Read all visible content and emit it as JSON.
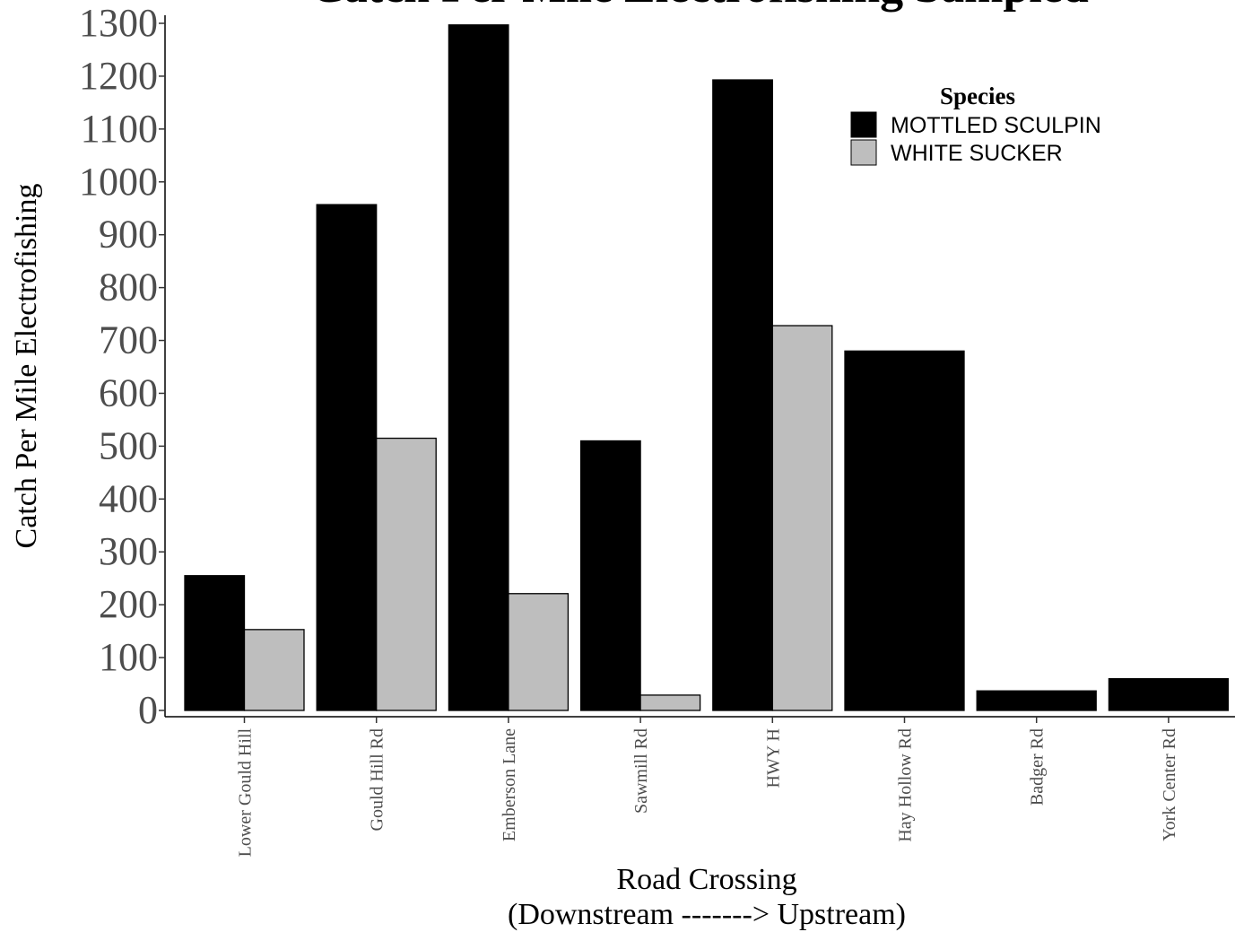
{
  "chart_data": {
    "type": "bar",
    "title": "Catch Per Mile Electrofishing Sampled",
    "xlabel": "Road Crossing",
    "xlabel_line2": "(Downstream -------> Upstream)",
    "ylabel": "Catch Per Mile Electrofishing",
    "ylim": [
      0,
      1300
    ],
    "yticks": [
      0,
      100,
      200,
      300,
      400,
      500,
      600,
      700,
      800,
      900,
      1000,
      1100,
      1200,
      1300
    ],
    "categories": [
      "Lower Gould Hill",
      "Gould Hill Rd",
      "Emberson Lane",
      "Sawmill Rd",
      "HWY H",
      "Hay Hollow Rd",
      "Badger Rd",
      "York Center Rd"
    ],
    "series": [
      {
        "name": "MOTTLED SCULPIN",
        "color": "#000000",
        "values": [
          255,
          957,
          1297,
          510,
          1193,
          680,
          37,
          60
        ]
      },
      {
        "name": "WHITE SUCKER",
        "color": "#bebebe",
        "values": [
          153,
          515,
          221,
          29,
          728,
          null,
          null,
          null
        ]
      }
    ],
    "legend": {
      "title": "Species",
      "position": "top-right"
    },
    "grid": false
  }
}
